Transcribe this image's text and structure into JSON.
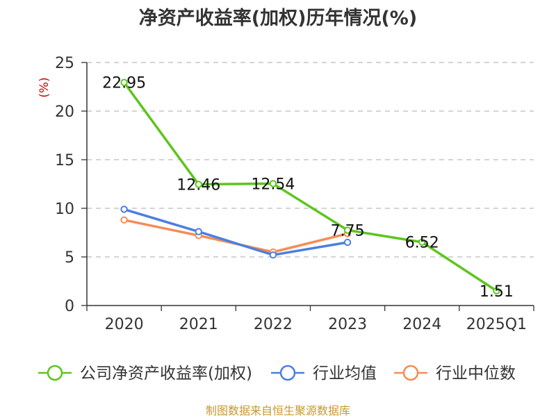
{
  "chart_data": {
    "type": "line",
    "title": "净资产收益率(加权)历年情况(%)",
    "ylabel": "(%)",
    "xlabel": "",
    "categories": [
      "2020",
      "2021",
      "2022",
      "2023",
      "2024",
      "2025Q1"
    ],
    "ylim": [
      0,
      25
    ],
    "yticks": [
      0,
      5,
      10,
      15,
      20,
      25
    ],
    "grid": true,
    "legend_position": "bottom",
    "series": [
      {
        "name": "公司净资产收益率(加权)",
        "color": "#5cc51d",
        "values": [
          22.95,
          12.46,
          12.54,
          7.75,
          6.52,
          1.51
        ],
        "labels": [
          "22.95",
          "12.46",
          "12.54",
          "7.75",
          "6.52",
          "1.51"
        ]
      },
      {
        "name": "行业均值",
        "color": "#4a7fe0",
        "values": [
          9.9,
          7.6,
          5.2,
          6.5,
          null,
          null
        ]
      },
      {
        "name": "行业中位数",
        "color": "#f58c55",
        "values": [
          8.8,
          7.2,
          5.5,
          7.4,
          null,
          null
        ]
      }
    ]
  },
  "source": "制图数据来自恒生聚源数据库"
}
